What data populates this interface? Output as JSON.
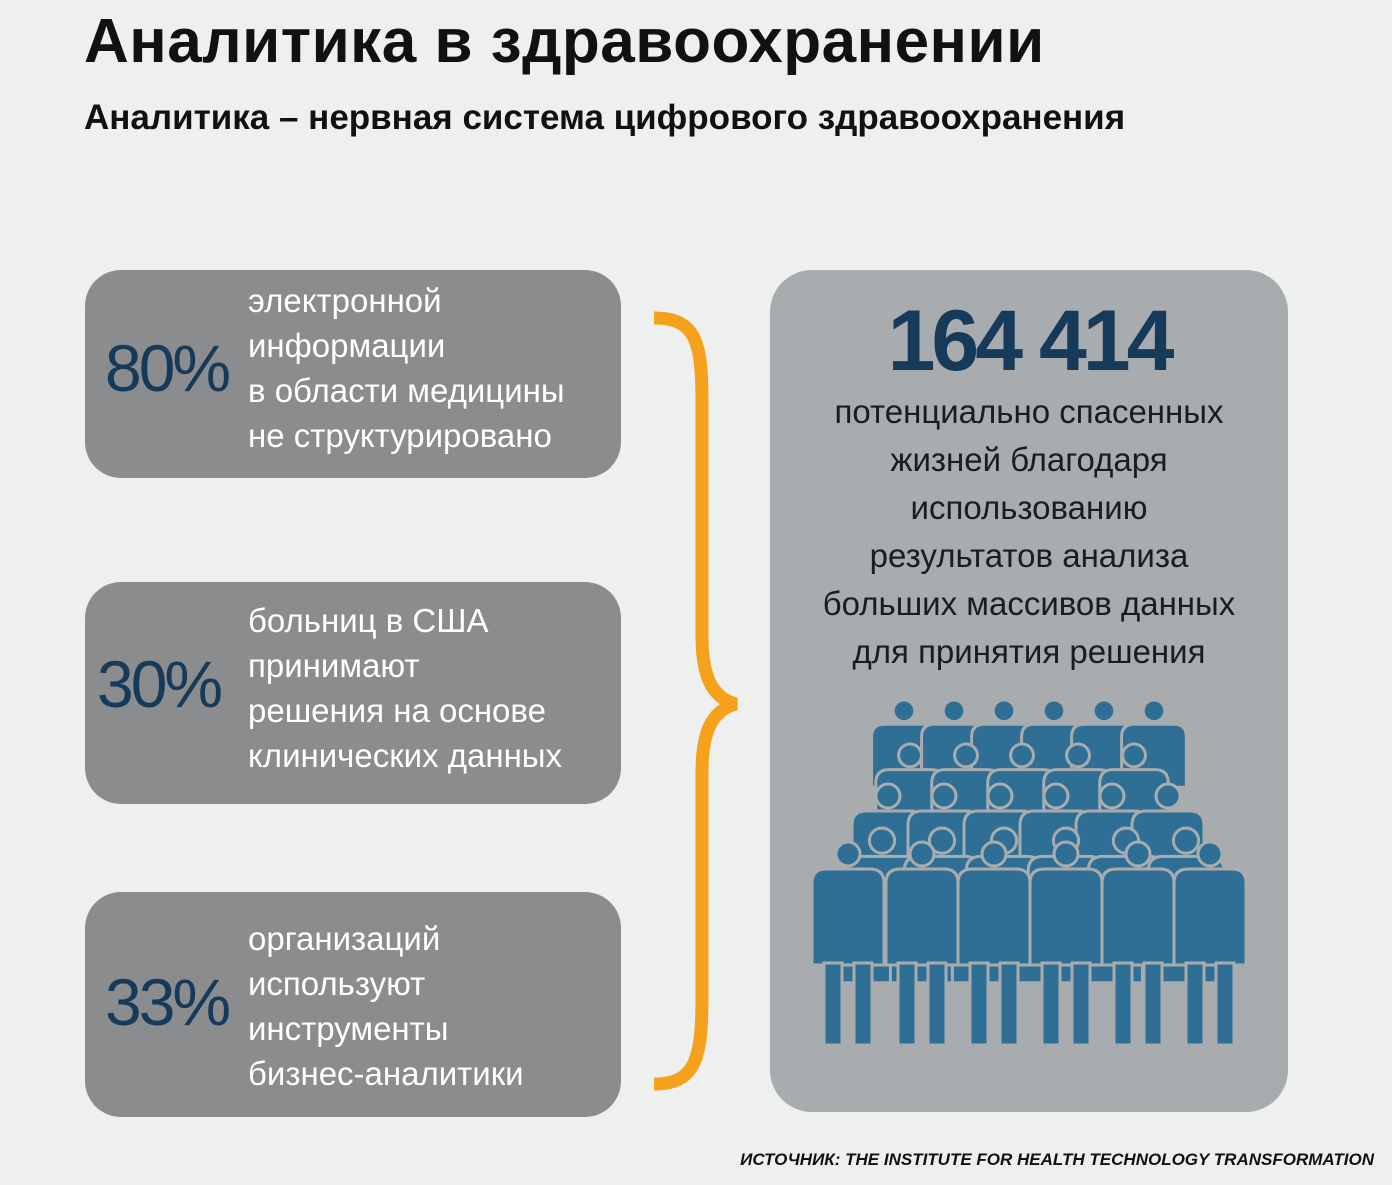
{
  "title": "Аналитика в здравоохранении",
  "subtitle": "Аналитика – нервная система цифрового здравоохранения",
  "stats": [
    {
      "value": "80%",
      "lines": [
        "электронной",
        "информации",
        "в области медицины",
        "не структурировано"
      ]
    },
    {
      "value": "30%",
      "lines": [
        "больниц в США",
        "принимают",
        "решения на основе",
        "клинических данных"
      ]
    },
    {
      "value": "33%",
      "lines": [
        "организаций",
        "используют",
        "инструменты",
        "бизнес-аналитики"
      ]
    }
  ],
  "highlight": {
    "number": "164 414",
    "lines": [
      "потенциально спасенных",
      "жизней благодаря",
      "использованию",
      "результатов анализа",
      "больших массивов данных",
      "для принятия решения"
    ]
  },
  "source": "ИСТОЧНИК: THE INSTITUTE FOR HEALTH TECHNOLOGY TRANSFORMATION",
  "colors": {
    "background": "#eef0ef",
    "stat_box": "#8a8c8e",
    "highlight_box": "#a8acaf",
    "number_text": "#163a5a",
    "brace": "#f5a11c",
    "people": "#2f6f95",
    "people_outline": "#a8acaf"
  },
  "icons": {
    "brace": "curly-brace-icon",
    "crowd": "crowd-people-icon"
  }
}
